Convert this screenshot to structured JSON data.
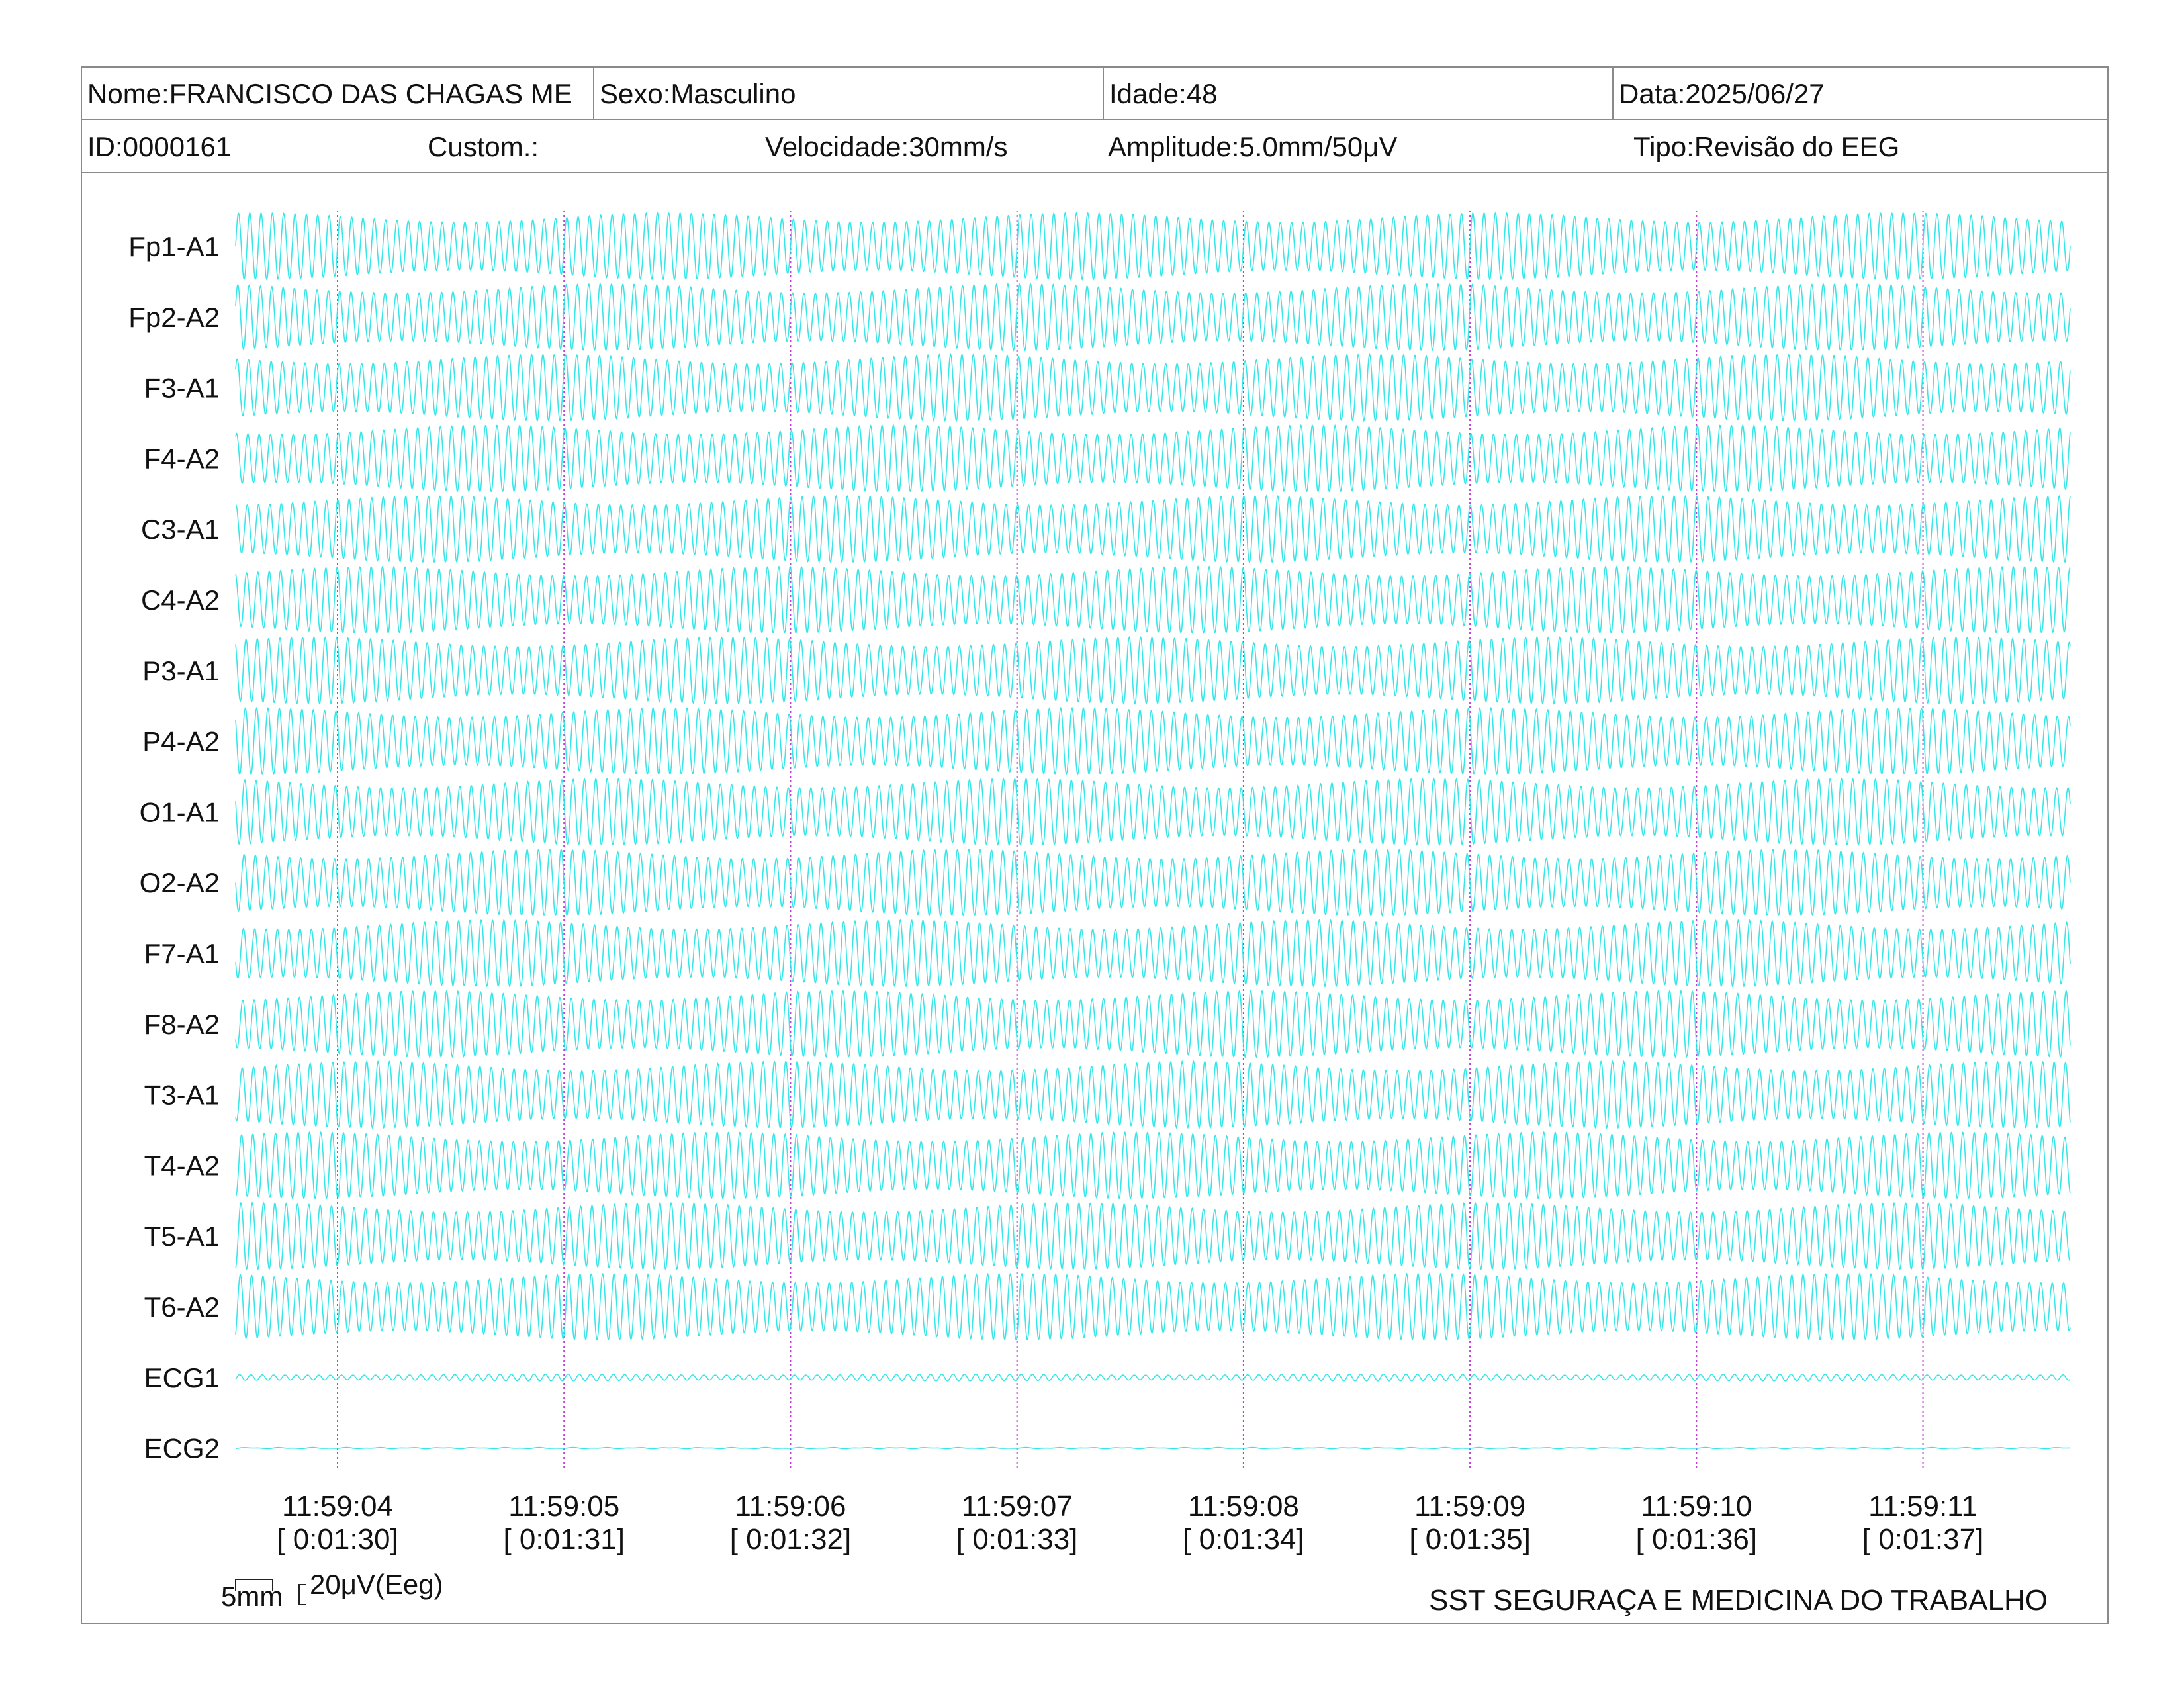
{
  "header": {
    "name": "Nome:FRANCISCO DAS CHAGAS ME",
    "sex": "Sexo:Masculino",
    "age": "Idade:48",
    "date": "Data:2025/06/27",
    "id": "ID:0000161",
    "custom": "Custom.:",
    "speed": "Velocidade:30mm/s",
    "amplitude": "Amplitude:5.0mm/50μV",
    "type": "Tipo:Revisão do EEG"
  },
  "chart_data": {
    "type": "line",
    "title": "",
    "channels": [
      "Fp1-A1",
      "Fp2-A2",
      "F3-A1",
      "F4-A2",
      "C3-A1",
      "C4-A2",
      "P3-A1",
      "P4-A2",
      "O1-A1",
      "O2-A2",
      "F7-A1",
      "F8-A2",
      "T3-A1",
      "T4-A2",
      "T5-A1",
      "T6-A2",
      "ECG1",
      "ECG2"
    ],
    "time_labels": [
      "11:59:04",
      "11:59:05",
      "11:59:06",
      "11:59:07",
      "11:59:08",
      "11:59:09",
      "11:59:10",
      "11:59:11"
    ],
    "elapsed_labels": [
      "[ 0:01:30]",
      "[ 0:01:31]",
      "[ 0:01:32]",
      "[ 0:01:33]",
      "[ 0:01:34]",
      "[ 0:01:35]",
      "[ 0:01:36]",
      "[ 0:01:37]"
    ],
    "time_range_s": [
      3.55,
      11.65
    ],
    "signal_frequency_hz": 20,
    "eeg_amplitude_uV": 50,
    "ecg1_amplitude_uV": 5,
    "ecg2_amplitude_uV": 1,
    "trace_color": "#22e3e6",
    "marker_color": "#c040d0",
    "grid": false
  },
  "footer": {
    "scale_h": "5mm",
    "scale_v": "20μV(Eeg)",
    "org": "SST SEGURAÇA E MEDICINA DO TRABALHO"
  }
}
